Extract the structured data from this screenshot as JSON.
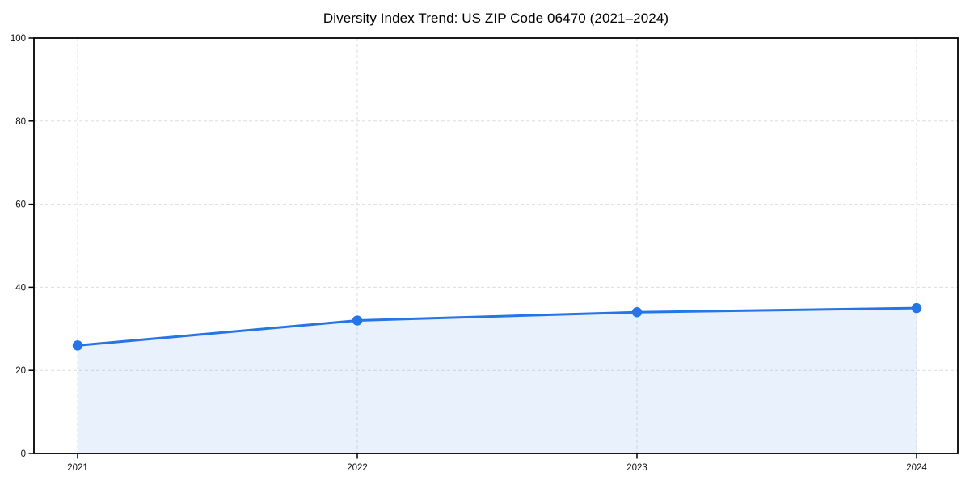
{
  "chart_data": {
    "type": "area",
    "title": "Diversity Index Trend: US ZIP Code 06470 (2021–2024)",
    "categories": [
      "2021",
      "2022",
      "2023",
      "2024"
    ],
    "values": [
      26,
      32,
      34,
      35
    ],
    "xlabel": "",
    "ylabel": "",
    "ylim": [
      0,
      100
    ],
    "yticks": [
      0,
      20,
      40,
      60,
      80,
      100
    ],
    "grid": true,
    "grid_style": "dashed",
    "legend_position": "none",
    "colors": {
      "line": "#2575e8",
      "marker": "#2575e8",
      "fill": "rgba(37,117,232,0.10)",
      "grid": "#dedede",
      "axis": "#000000",
      "background": "#ffffff",
      "tick_text": "#111111"
    }
  }
}
